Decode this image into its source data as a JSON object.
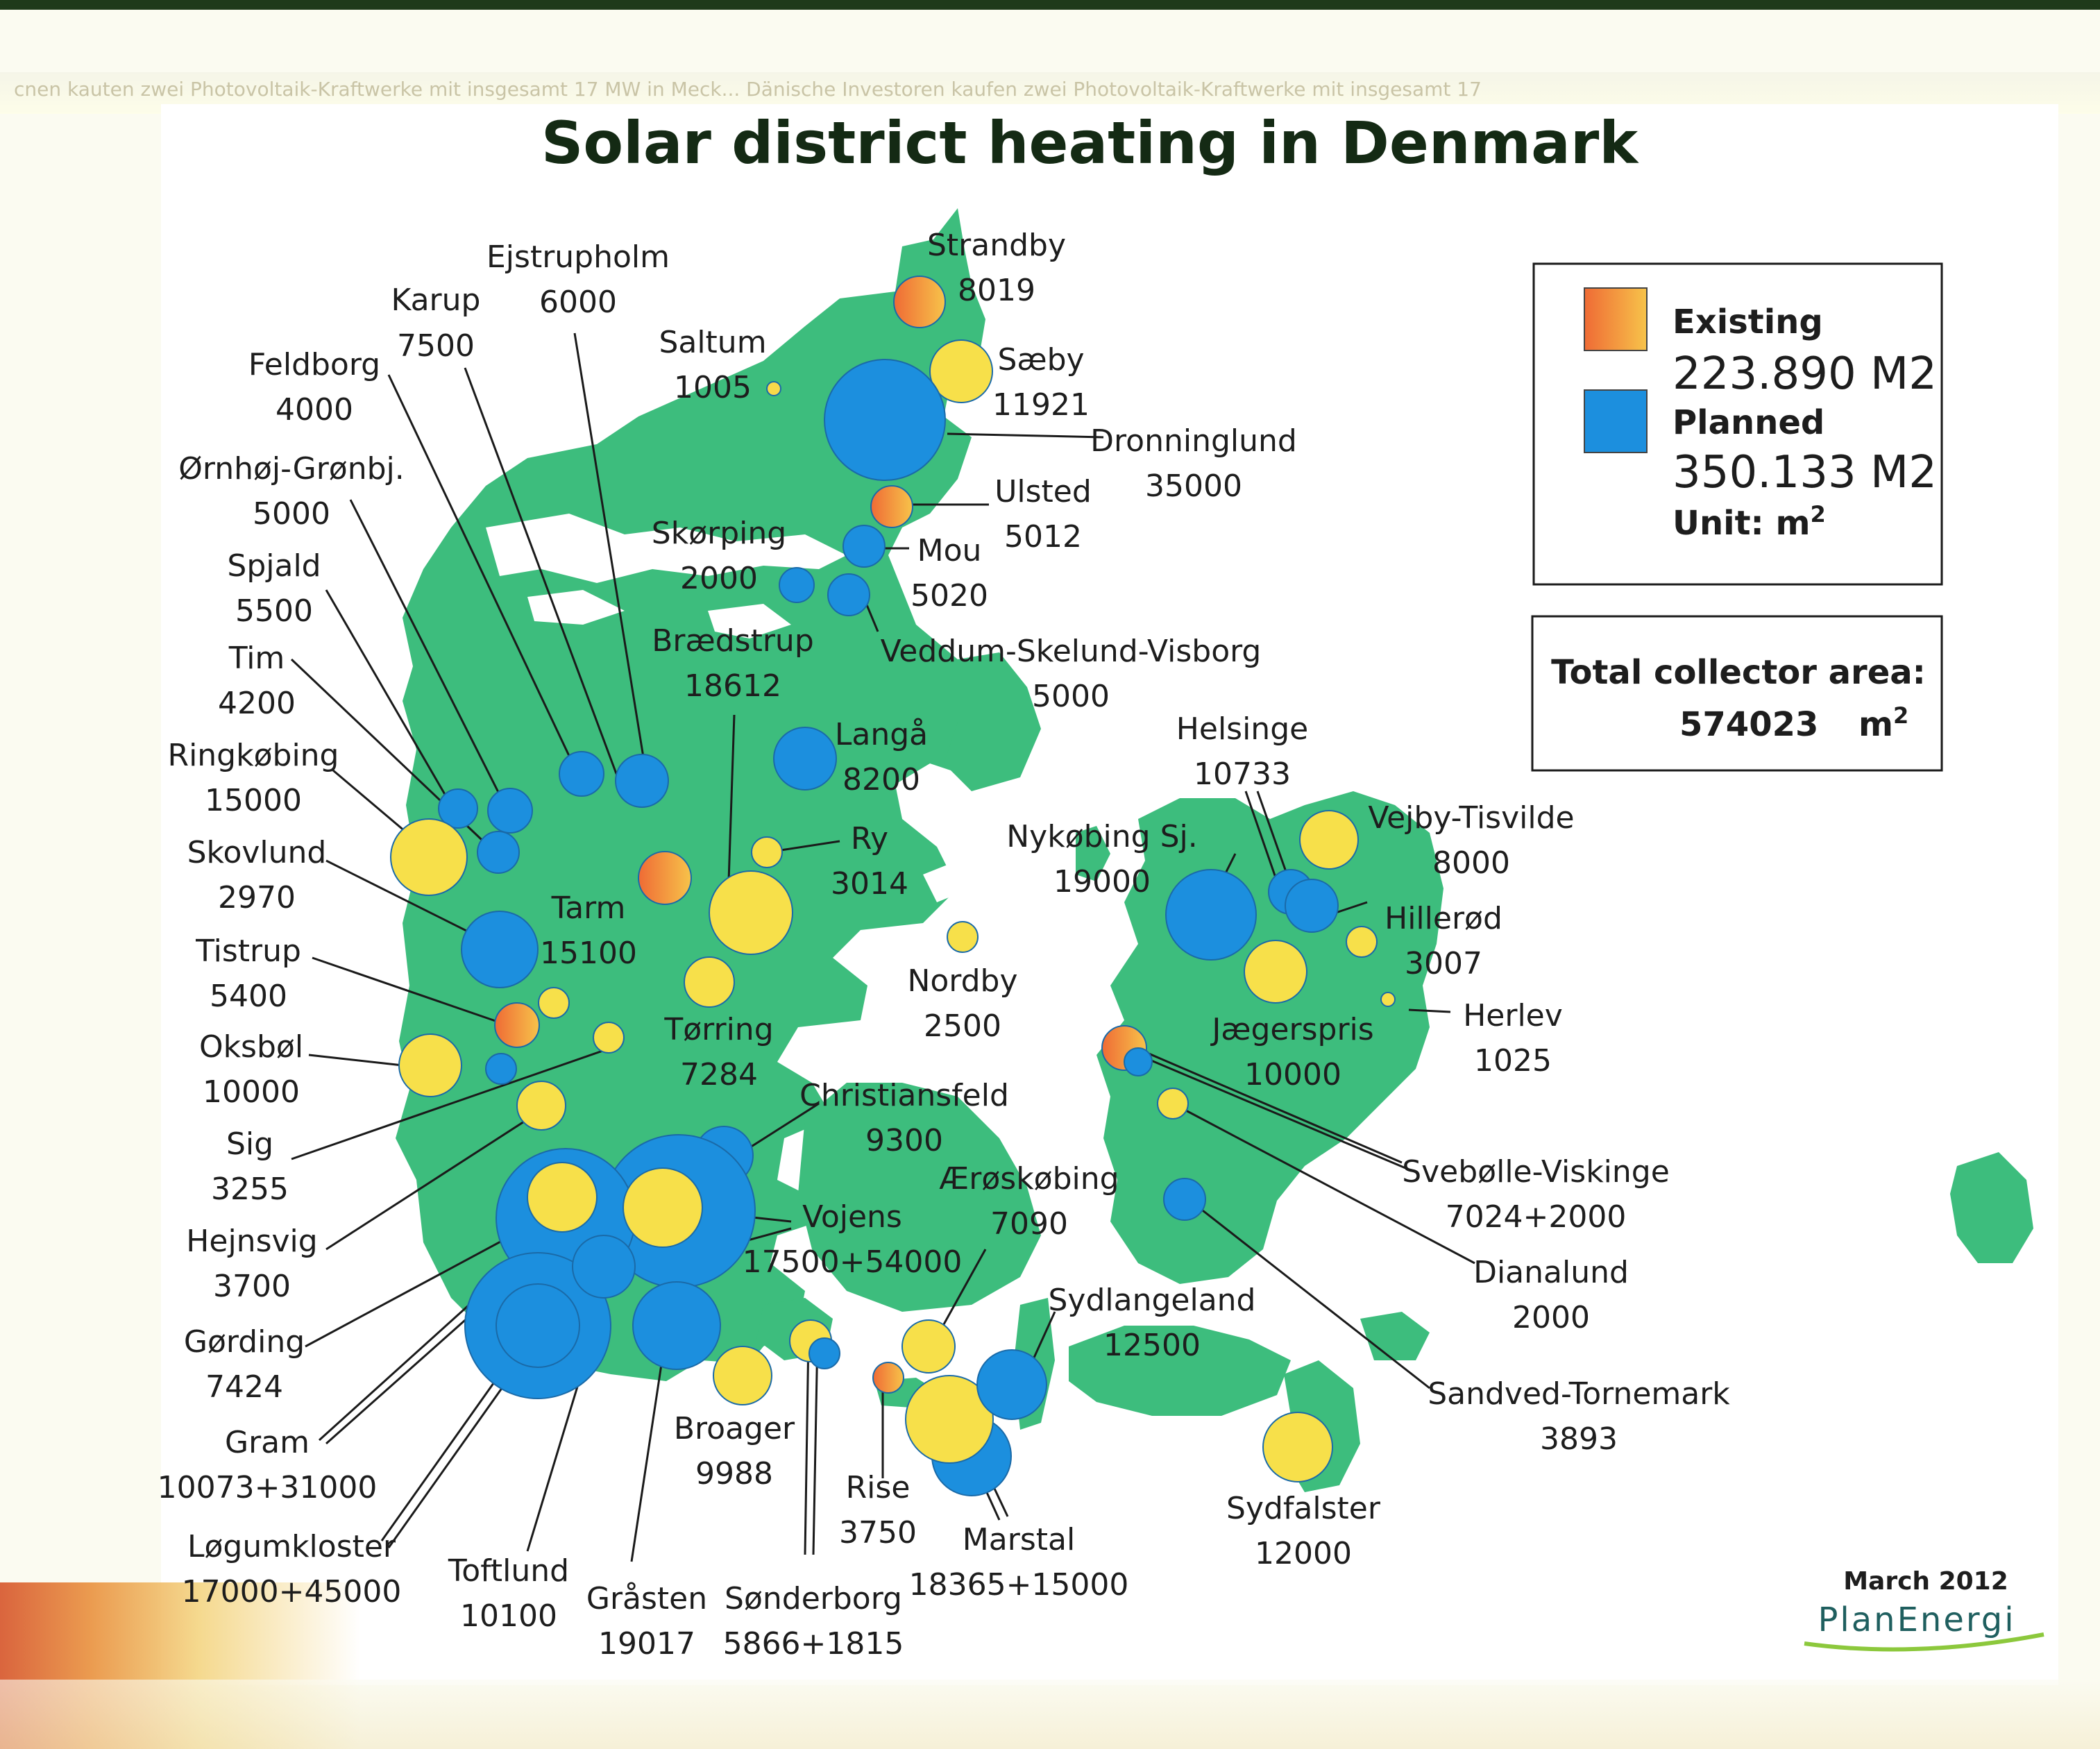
{
  "header_bleed": "cnen kauten zwei Photovoltaik-Kraftwerke mit insgesamt 17 MW in Meck... Dänische Investoren kaufen zwei Photovoltaik-Kraftwerke mit insgesamt 17",
  "title": "Solar district heating in Denmark",
  "legend": {
    "existing_label": "Existing",
    "existing_value": "223.890 M2",
    "planned_label": "Planned",
    "planned_value": "350.133 M2",
    "unit_label": "Unit: m",
    "unit_sup": "2"
  },
  "total": {
    "label": "Total collector area:",
    "value": "574023",
    "unit": "m",
    "unit_sup": "2"
  },
  "footer": {
    "date": "March 2012",
    "brand": "PlanEnergi"
  },
  "colors": {
    "existing": "#ef8a3c",
    "existing_light": "#f7c84a",
    "planned": "#1c8fde",
    "land": "#3dbd7d",
    "leader": "#1a1a1a"
  },
  "labels": [
    {
      "name": "Ejstrupholm",
      "value": "6000"
    },
    {
      "name": "Karup",
      "value": "7500"
    },
    {
      "name": "Feldborg",
      "value": "4000"
    },
    {
      "name": "Ørnhøj-Grønbj.",
      "value": "5000"
    },
    {
      "name": "Spjald",
      "value": "5500"
    },
    {
      "name": "Tim",
      "value": "4200"
    },
    {
      "name": "Ringkøbing",
      "value": "15000"
    },
    {
      "name": "Skovlund",
      "value": "2970"
    },
    {
      "name": "Tistrup",
      "value": "5400"
    },
    {
      "name": "Oksbøl",
      "value": "10000"
    },
    {
      "name": "Sig",
      "value": "3255"
    },
    {
      "name": "Hejnsvig",
      "value": "3700"
    },
    {
      "name": "Gørding",
      "value": "7424"
    },
    {
      "name": "Gram",
      "value": "10073+31000"
    },
    {
      "name": "Løgumkloster",
      "value": "17000+45000"
    },
    {
      "name": "Toftlund",
      "value": "10100"
    },
    {
      "name": "Gråsten",
      "value": "19017"
    },
    {
      "name": "Sønderborg",
      "value": "5866+1815"
    },
    {
      "name": "Broager",
      "value": "9988"
    },
    {
      "name": "Rise",
      "value": "3750"
    },
    {
      "name": "Marstal",
      "value": "18365+15000"
    },
    {
      "name": "Vojens",
      "value": "17500+54000"
    },
    {
      "name": "Ærøskøbing",
      "value": "7090"
    },
    {
      "name": "Christiansfeld",
      "value": "9300"
    },
    {
      "name": "Tørring",
      "value": "7284"
    },
    {
      "name": "Tarm",
      "value": "15100"
    },
    {
      "name": "Nordby",
      "value": "2500"
    },
    {
      "name": "Ry",
      "value": "3014"
    },
    {
      "name": "Langå",
      "value": "8200"
    },
    {
      "name": "Brædstrup",
      "value": "18612"
    },
    {
      "name": "Skørping",
      "value": "2000"
    },
    {
      "name": "Saltum",
      "value": "1005"
    },
    {
      "name": "Strandby",
      "value": "8019"
    },
    {
      "name": "Sæby",
      "value": "11921"
    },
    {
      "name": "Dronninglund",
      "value": "35000"
    },
    {
      "name": "Ulsted",
      "value": "5012"
    },
    {
      "name": "Mou",
      "value": "5020"
    },
    {
      "name": "Veddum-Skelund-Visborg",
      "value": "5000"
    },
    {
      "name": "Helsinge",
      "value": "10733"
    },
    {
      "name": "Nykøbing Sj.",
      "value": "19000"
    },
    {
      "name": "Vejby-Tisvilde",
      "value": "8000"
    },
    {
      "name": "Hillerød",
      "value": "3007"
    },
    {
      "name": "Herlev",
      "value": "1025"
    },
    {
      "name": "Jægerspris",
      "value": "10000"
    },
    {
      "name": "Svebølle-Viskinge",
      "value": "7024+2000"
    },
    {
      "name": "Dianalund",
      "value": "2000"
    },
    {
      "name": "Sandved-Tornemark",
      "value": "3893"
    },
    {
      "name": "Sydlangeland",
      "value": "12500"
    },
    {
      "name": "Sydfalster",
      "value": "12000"
    }
  ]
}
